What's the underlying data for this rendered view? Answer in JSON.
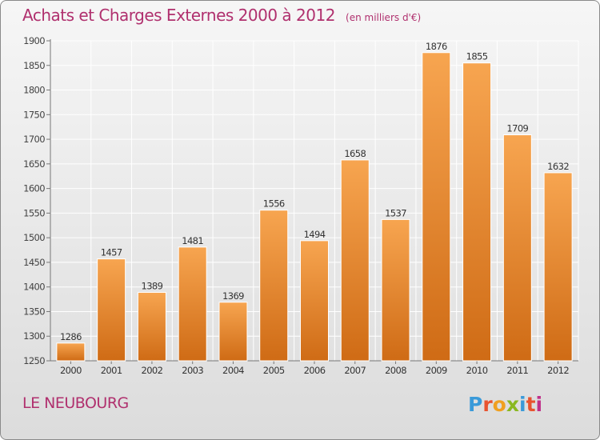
{
  "header": {
    "title": "Achats et Charges Externes 2000 à 2012",
    "subtitle": "(en milliers d'€)"
  },
  "footer": {
    "city": "LE NEUBOURG",
    "logo_text": "Proxiti",
    "logo_letters": [
      {
        "ch": "P",
        "color": "#3a9ad9"
      },
      {
        "ch": "r",
        "color": "#e8532f"
      },
      {
        "ch": "o",
        "color": "#f0a020"
      },
      {
        "ch": "x",
        "color": "#8ab820"
      },
      {
        "ch": "i",
        "color": "#3a9ad9"
      },
      {
        "ch": "t",
        "color": "#e8532f"
      },
      {
        "ch": "i",
        "color": "#c0308a"
      }
    ]
  },
  "colors": {
    "bar_top": "#f7a550",
    "bar_bottom": "#cf6b15",
    "text_accent": "#b0306e",
    "grid": "#ffffff"
  },
  "chart_data": {
    "type": "bar",
    "title": "Achats et Charges Externes 2000 à 2012",
    "categories": [
      "2000",
      "2001",
      "2002",
      "2003",
      "2004",
      "2005",
      "2006",
      "2007",
      "2008",
      "2009",
      "2010",
      "2011",
      "2012"
    ],
    "values": [
      1286,
      1457,
      1389,
      1481,
      1369,
      1556,
      1494,
      1658,
      1537,
      1876,
      1855,
      1709,
      1632
    ],
    "ylim": [
      1250,
      1900
    ],
    "yticks": [
      1250,
      1300,
      1350,
      1400,
      1450,
      1500,
      1550,
      1600,
      1650,
      1700,
      1750,
      1800,
      1850,
      1900
    ],
    "grid": true,
    "data_labels": true
  }
}
